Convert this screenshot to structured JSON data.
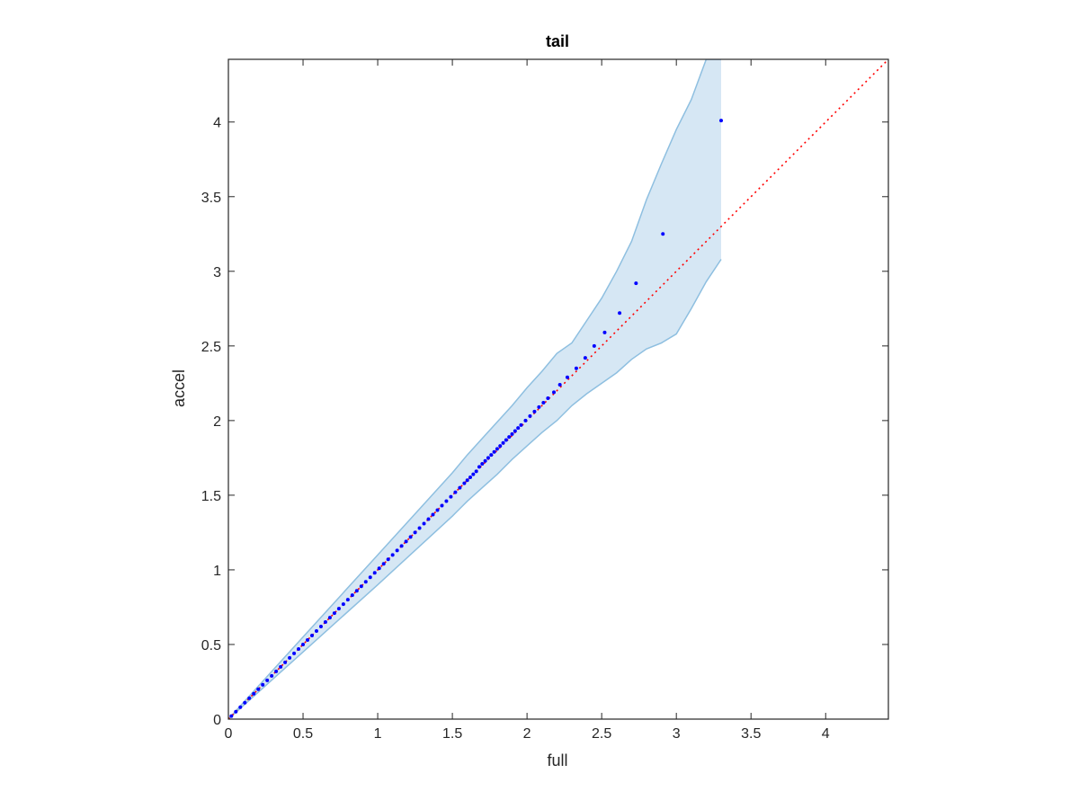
{
  "chart_data": {
    "type": "scatter",
    "title": "tail",
    "xlabel": "full",
    "ylabel": "accel",
    "xlim": [
      0,
      4.42
    ],
    "ylim": [
      0,
      4.42
    ],
    "xticks": [
      0,
      0.5,
      1,
      1.5,
      2,
      2.5,
      3,
      3.5,
      4
    ],
    "yticks": [
      0,
      0.5,
      1,
      1.5,
      2,
      2.5,
      3,
      3.5,
      4
    ],
    "grid": false,
    "series": [
      {
        "kind": "points",
        "color": "#0000ff",
        "x": [
          0.02,
          0.05,
          0.08,
          0.11,
          0.14,
          0.17,
          0.2,
          0.23,
          0.26,
          0.29,
          0.32,
          0.35,
          0.38,
          0.41,
          0.44,
          0.47,
          0.5,
          0.53,
          0.56,
          0.59,
          0.62,
          0.65,
          0.68,
          0.71,
          0.74,
          0.77,
          0.8,
          0.83,
          0.86,
          0.89,
          0.92,
          0.95,
          0.98,
          1.01,
          1.04,
          1.07,
          1.1,
          1.13,
          1.16,
          1.19,
          1.22,
          1.25,
          1.28,
          1.31,
          1.34,
          1.37,
          1.4,
          1.43,
          1.46,
          1.49,
          1.52,
          1.55,
          1.58,
          1.6,
          1.62,
          1.64,
          1.66,
          1.68,
          1.7,
          1.72,
          1.74,
          1.76,
          1.78,
          1.8,
          1.82,
          1.84,
          1.86,
          1.88,
          1.9,
          1.92,
          1.94,
          1.96,
          1.99,
          2.02,
          2.05,
          2.08,
          2.11,
          2.14,
          2.18,
          2.22,
          2.27,
          2.33,
          2.39,
          2.45,
          2.52,
          2.62,
          2.73,
          2.91,
          3.3
        ],
        "y": [
          0.02,
          0.05,
          0.08,
          0.11,
          0.14,
          0.17,
          0.2,
          0.23,
          0.26,
          0.29,
          0.32,
          0.35,
          0.38,
          0.41,
          0.44,
          0.47,
          0.5,
          0.53,
          0.56,
          0.59,
          0.62,
          0.65,
          0.68,
          0.71,
          0.74,
          0.77,
          0.8,
          0.83,
          0.86,
          0.89,
          0.92,
          0.95,
          0.98,
          1.01,
          1.04,
          1.07,
          1.1,
          1.13,
          1.16,
          1.19,
          1.22,
          1.25,
          1.28,
          1.31,
          1.34,
          1.37,
          1.4,
          1.43,
          1.46,
          1.49,
          1.52,
          1.55,
          1.58,
          1.6,
          1.62,
          1.64,
          1.66,
          1.69,
          1.71,
          1.73,
          1.75,
          1.77,
          1.79,
          1.81,
          1.83,
          1.85,
          1.87,
          1.89,
          1.91,
          1.93,
          1.95,
          1.97,
          2.0,
          2.03,
          2.06,
          2.09,
          2.12,
          2.15,
          2.19,
          2.24,
          2.29,
          2.35,
          2.42,
          2.5,
          2.59,
          2.72,
          2.92,
          3.25,
          4.01
        ]
      },
      {
        "kind": "reference-line",
        "color": "#ff0000",
        "style": "dotted",
        "x": [
          0,
          4.42
        ],
        "y": [
          0,
          4.42
        ]
      },
      {
        "kind": "band",
        "fill_color": "#d6e7f4",
        "edge_color": "#8ebfe0",
        "x": [
          0,
          0.5,
          1.0,
          1.5,
          1.6,
          1.7,
          1.8,
          1.9,
          2.0,
          2.1,
          2.2,
          2.3,
          2.4,
          2.5,
          2.6,
          2.7,
          2.8,
          2.9,
          3.0,
          3.1,
          3.2,
          3.3
        ],
        "upper": [
          0,
          0.55,
          1.1,
          1.65,
          1.77,
          1.88,
          1.99,
          2.1,
          2.22,
          2.33,
          2.45,
          2.52,
          2.67,
          2.82,
          3.0,
          3.2,
          3.48,
          3.72,
          3.95,
          4.15,
          4.42,
          4.42
        ],
        "lower": [
          0,
          0.45,
          0.9,
          1.36,
          1.46,
          1.55,
          1.64,
          1.74,
          1.83,
          1.92,
          2.0,
          2.1,
          2.18,
          2.25,
          2.32,
          2.41,
          2.48,
          2.52,
          2.58,
          2.75,
          2.93,
          3.08
        ]
      }
    ]
  }
}
